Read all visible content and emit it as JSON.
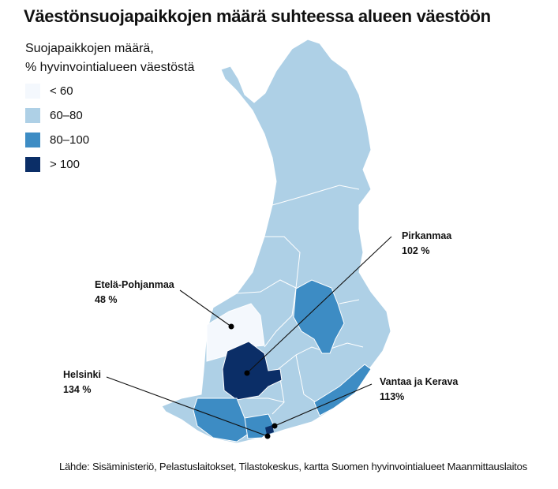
{
  "title": "Väestönsuojapaikkojen määrä suhteessa alueen väestöön",
  "legend": {
    "title_line1": "Suojapaikkojen määrä,",
    "title_line2": "% hyvinvointialueen väestöstä",
    "items": [
      {
        "label": "< 60",
        "color": "#f4f8fd"
      },
      {
        "label": "60–80",
        "color": "#aed0e6"
      },
      {
        "label": "80–100",
        "color": "#3d8cc4"
      },
      {
        "label": "> 100",
        "color": "#0b2e67"
      }
    ]
  },
  "callouts": [
    {
      "name": "Etelä-Pohjanmaa",
      "value": "48 %"
    },
    {
      "name": "Pirkanmaa",
      "value": "102 %"
    },
    {
      "name": "Helsinki",
      "value": "134 %"
    },
    {
      "name": "Vantaa ja Kerava",
      "value": "113%"
    }
  ],
  "source": "Lähde: Sisäministeriö, Pelastuslaitokset, Tilastokeskus, kartta Suomen hyvinvointialueet Maanmittauslaitos"
}
